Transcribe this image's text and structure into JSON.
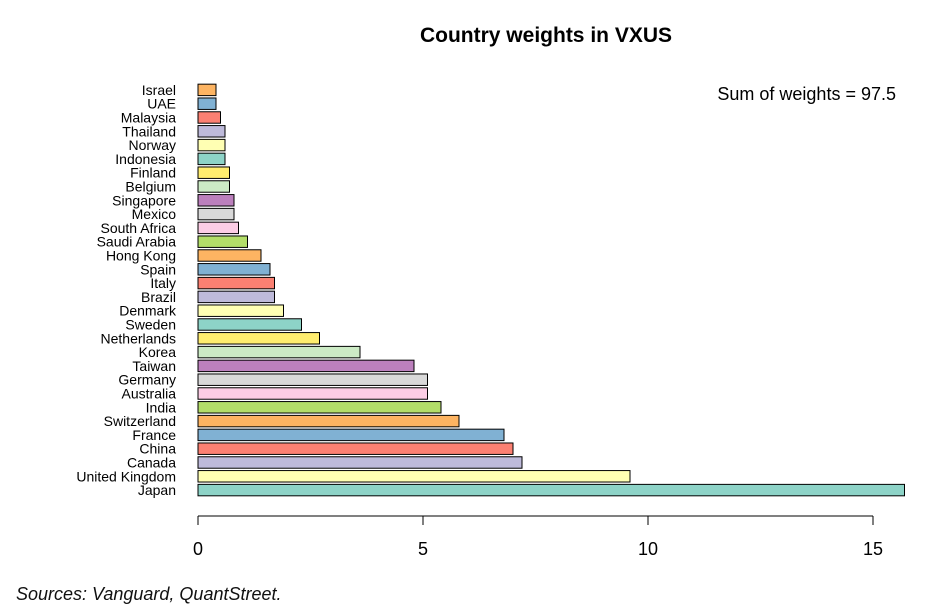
{
  "chart_data": {
    "type": "bar",
    "orientation": "horizontal",
    "title": "Country weights in VXUS",
    "annotation": "Sum of weights = 97.5",
    "xlabel": "",
    "ylabel": "",
    "xlim": [
      0,
      15.7
    ],
    "x_ticks": [
      0,
      5,
      10,
      15
    ],
    "grid": false,
    "categories": [
      "Japan",
      "United Kingdom",
      "Canada",
      "China",
      "France",
      "Switzerland",
      "India",
      "Australia",
      "Germany",
      "Taiwan",
      "Korea",
      "Netherlands",
      "Sweden",
      "Denmark",
      "Brazil",
      "Italy",
      "Spain",
      "Hong Kong",
      "Saudi Arabia",
      "South Africa",
      "Mexico",
      "Singapore",
      "Belgium",
      "Finland",
      "Indonesia",
      "Norway",
      "Thailand",
      "Malaysia",
      "UAE",
      "Israel"
    ],
    "values": [
      15.7,
      9.6,
      7.2,
      7.0,
      6.8,
      5.8,
      5.4,
      5.1,
      5.1,
      4.8,
      3.6,
      2.7,
      2.3,
      1.9,
      1.7,
      1.7,
      1.6,
      1.4,
      1.1,
      0.9,
      0.8,
      0.8,
      0.7,
      0.7,
      0.6,
      0.6,
      0.6,
      0.5,
      0.4,
      0.4
    ],
    "colors": [
      "#8DD3C7",
      "#FFFFB3",
      "#BEBADA",
      "#FB8072",
      "#80B1D3",
      "#FDB462",
      "#B3DE69",
      "#FCCDE5",
      "#D9D9D9",
      "#BC80BD",
      "#CCEBC5",
      "#FFED6F",
      "#8DD3C7",
      "#FFFFB3",
      "#BEBADA",
      "#FB8072",
      "#80B1D3",
      "#FDB462",
      "#B3DE69",
      "#FCCDE5",
      "#D9D9D9",
      "#BC80BD",
      "#CCEBC5",
      "#FFED6F",
      "#8DD3C7",
      "#FFFFB3",
      "#BEBADA",
      "#FB8072",
      "#80B1D3",
      "#FDB462"
    ]
  },
  "footer": {
    "source": "Sources: Vanguard, QuantStreet."
  }
}
